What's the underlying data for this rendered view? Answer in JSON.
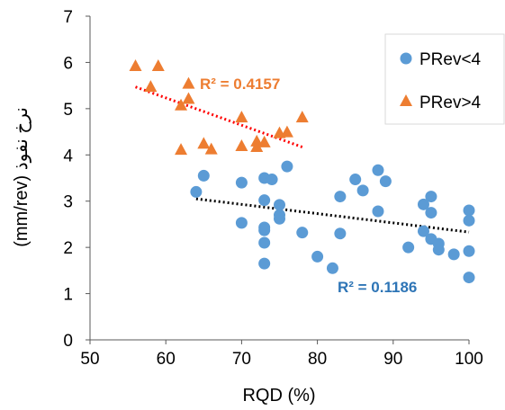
{
  "chart_data": {
    "type": "scatter",
    "xlabel": "RQD (%)",
    "ylabel": "(mm/rev) نرخ نفوذ",
    "xlim": [
      50,
      100
    ],
    "ylim": [
      0,
      7
    ],
    "xticks": [
      50,
      60,
      70,
      80,
      90,
      100
    ],
    "yticks": [
      0,
      1,
      2,
      3,
      4,
      5,
      6,
      7
    ],
    "grid": false,
    "legend_position": "top-right",
    "series": [
      {
        "name": "PRev<4",
        "marker": "circle",
        "color": "#5B9BD5",
        "trendline": {
          "color": "#000000",
          "style": "dotted",
          "x": [
            64,
            100
          ],
          "y": [
            3.05,
            2.33
          ],
          "r2_label": "R² = 0.1186",
          "r2_color": "#2E75B6"
        },
        "points": [
          [
            64,
            3.2
          ],
          [
            65,
            3.55
          ],
          [
            70,
            3.4
          ],
          [
            70,
            2.53
          ],
          [
            73,
            3.5
          ],
          [
            73,
            3.02
          ],
          [
            73,
            2.43
          ],
          [
            73,
            2.37
          ],
          [
            73,
            2.1
          ],
          [
            73,
            1.65
          ],
          [
            74,
            3.47
          ],
          [
            75,
            2.92
          ],
          [
            75,
            2.7
          ],
          [
            75,
            2.62
          ],
          [
            76,
            3.75
          ],
          [
            78,
            2.32
          ],
          [
            80,
            1.8
          ],
          [
            82,
            1.55
          ],
          [
            83,
            3.1
          ],
          [
            83,
            2.3
          ],
          [
            85,
            3.47
          ],
          [
            86,
            3.23
          ],
          [
            88,
            3.67
          ],
          [
            88,
            2.78
          ],
          [
            89,
            3.43
          ],
          [
            92,
            2.0
          ],
          [
            94,
            2.93
          ],
          [
            94,
            2.35
          ],
          [
            95,
            3.1
          ],
          [
            95,
            2.75
          ],
          [
            95,
            2.18
          ],
          [
            96,
            2.08
          ],
          [
            96,
            1.95
          ],
          [
            98,
            1.85
          ],
          [
            100,
            2.8
          ],
          [
            100,
            2.58
          ],
          [
            100,
            1.92
          ],
          [
            100,
            1.35
          ]
        ]
      },
      {
        "name": "PRev>4",
        "marker": "triangle",
        "color": "#ED7D31",
        "trendline": {
          "color": "#FF0000",
          "style": "dotted",
          "x": [
            56,
            78
          ],
          "y": [
            5.47,
            4.17
          ],
          "r2_label": "R² = 0.4157",
          "r2_color": "#ED7D31"
        },
        "points": [
          [
            56,
            5.93
          ],
          [
            58,
            5.48
          ],
          [
            59,
            5.93
          ],
          [
            62,
            5.08
          ],
          [
            62,
            4.12
          ],
          [
            63,
            5.55
          ],
          [
            63,
            5.22
          ],
          [
            65,
            4.25
          ],
          [
            66,
            4.13
          ],
          [
            70,
            4.82
          ],
          [
            70,
            4.2
          ],
          [
            72,
            4.3
          ],
          [
            72,
            4.18
          ],
          [
            73,
            4.28
          ],
          [
            75,
            4.48
          ],
          [
            76,
            4.5
          ],
          [
            78,
            4.82
          ]
        ]
      }
    ]
  }
}
